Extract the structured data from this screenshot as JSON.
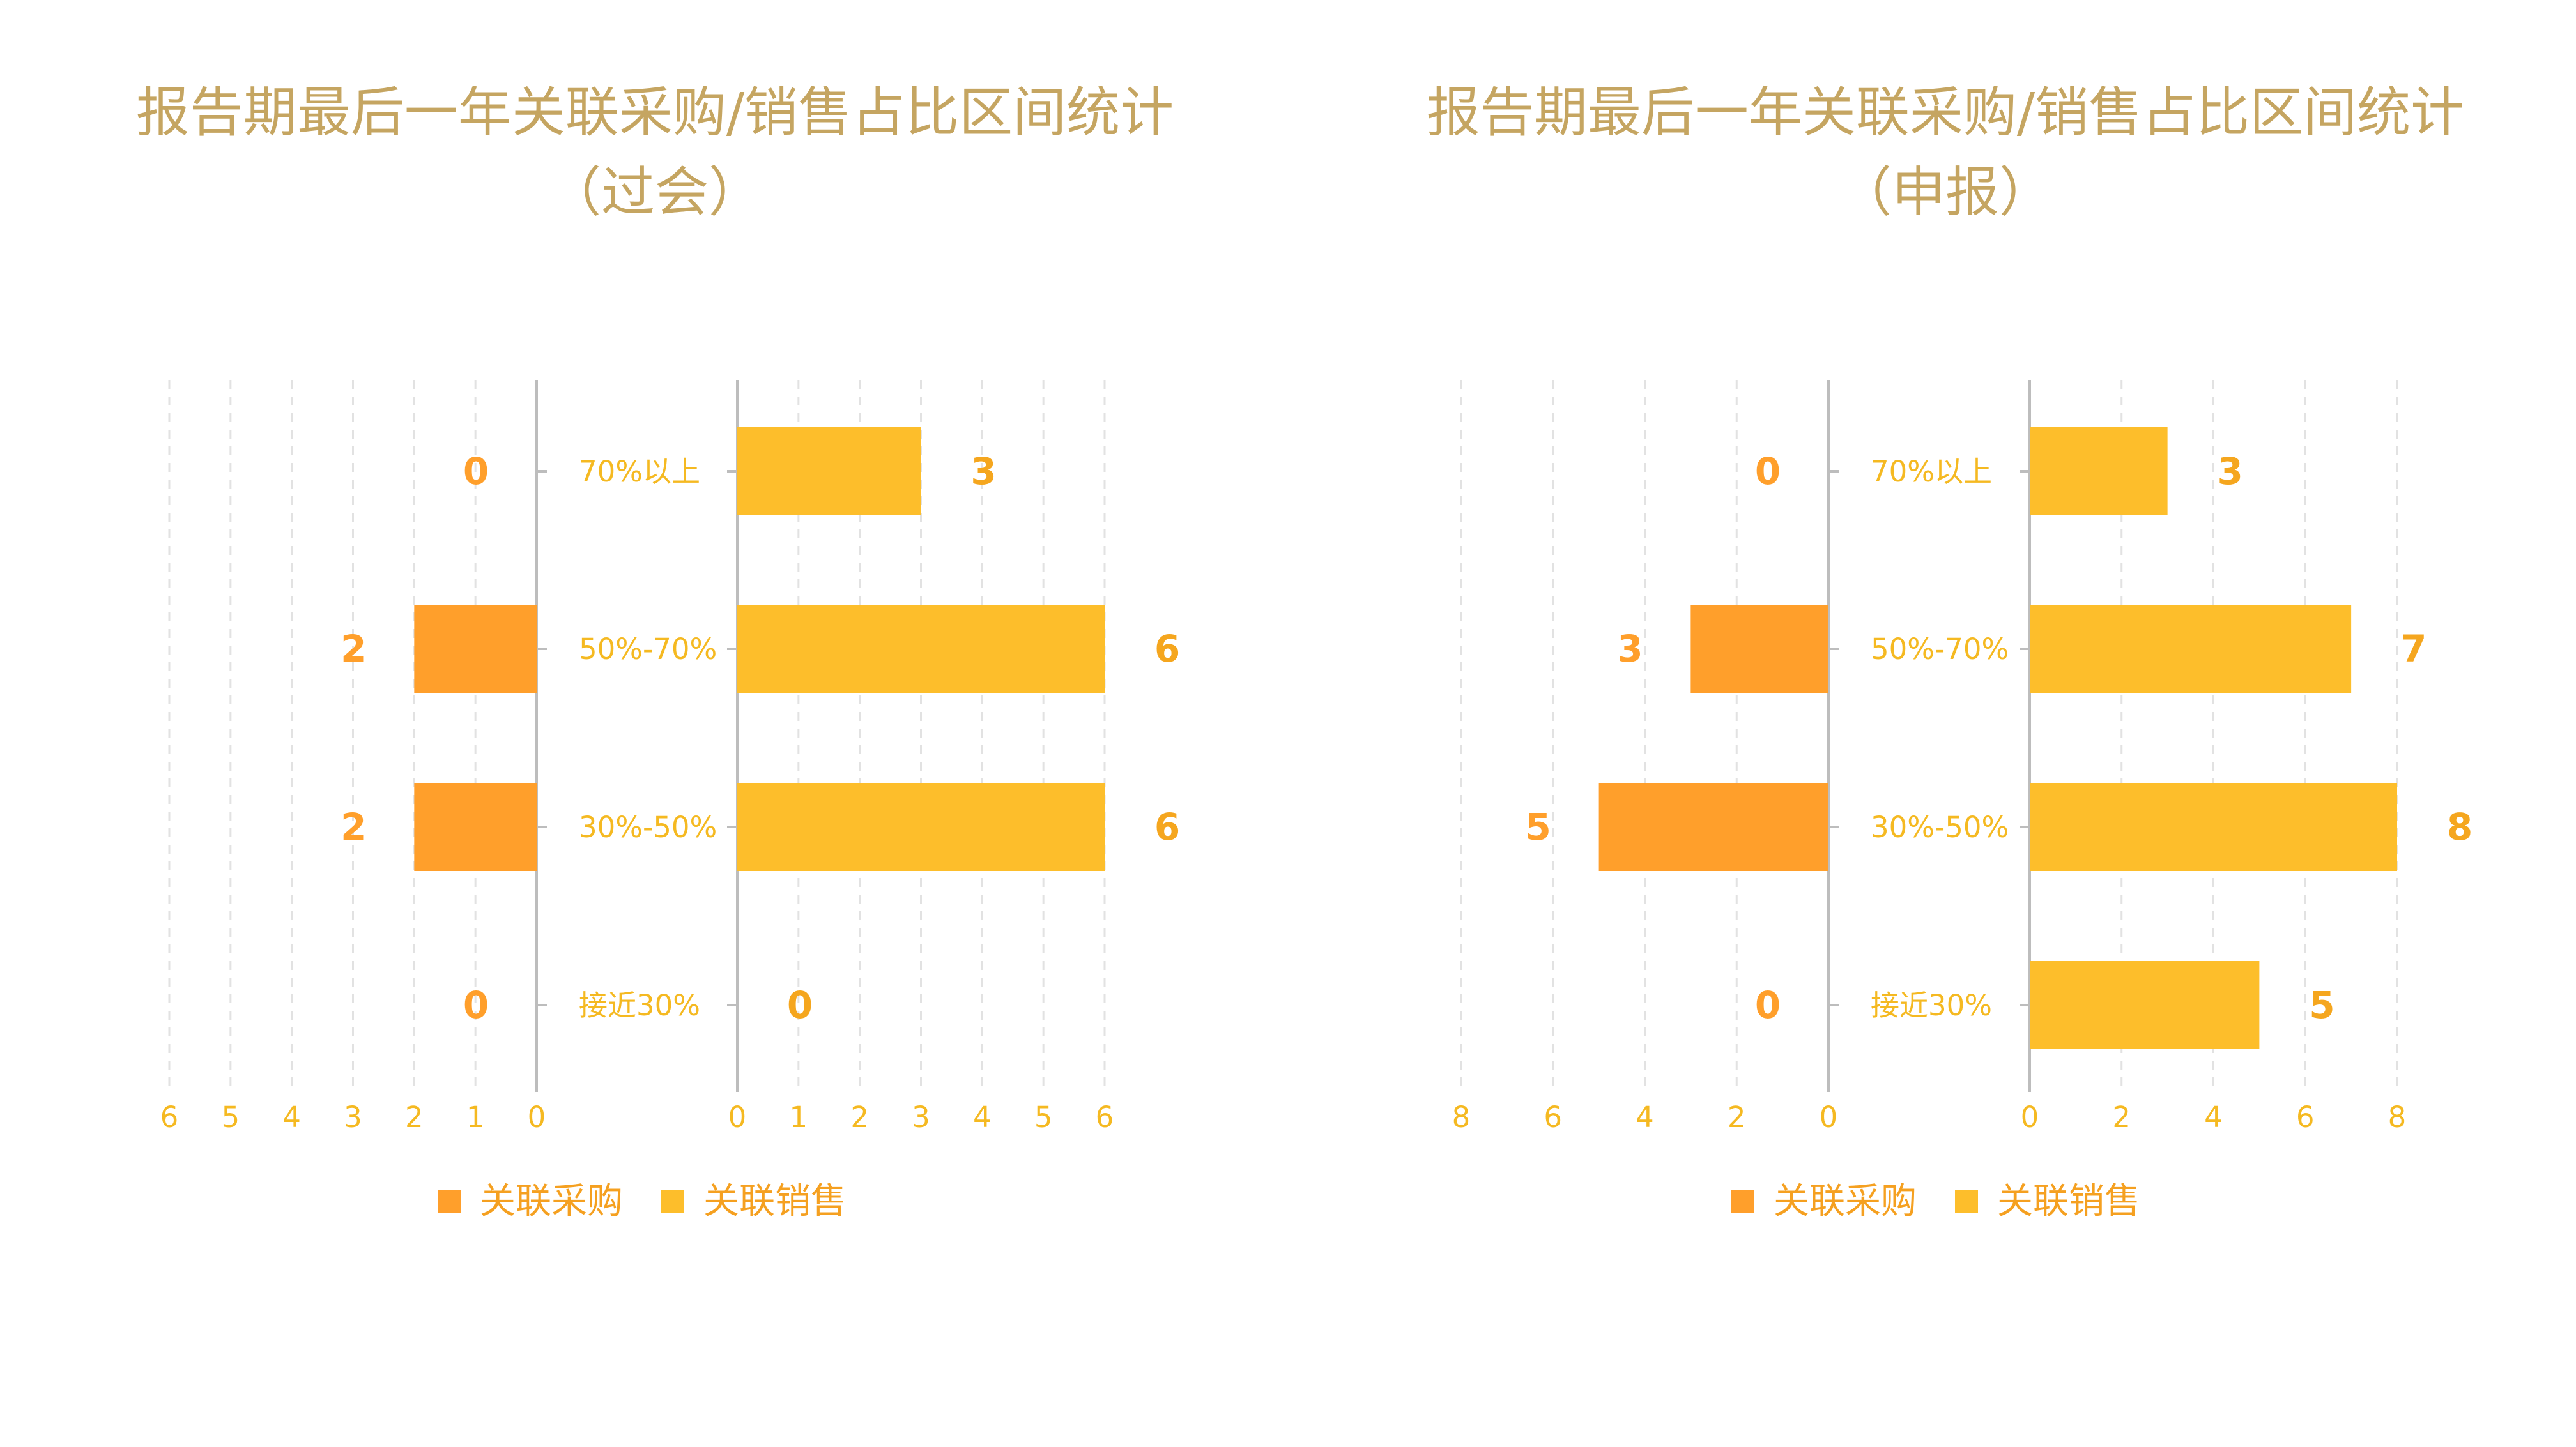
{
  "colors": {
    "purchase": "#ff9f2b",
    "sales": "#fdbe2b",
    "title": "#c5a561",
    "label": "#f5b921",
    "axis": "#bdbdbd",
    "grid": "#e2e2e2"
  },
  "chart_data": [
    {
      "type": "bar",
      "orientation": "horizontal-butterfly",
      "title_line1": "报告期最后一年关联采购/销售占比区间统计",
      "title_line2": "（过会）",
      "categories": [
        "70%以上",
        "50%-70%",
        "30%-50%",
        "接近30%"
      ],
      "series": [
        {
          "name": "关联采购",
          "values": [
            0,
            2,
            2,
            0
          ]
        },
        {
          "name": "关联销售",
          "values": [
            3,
            6,
            6,
            0
          ]
        }
      ],
      "left_ticks": [
        "6",
        "5",
        "4",
        "3",
        "2",
        "1",
        "0"
      ],
      "right_ticks": [
        "0",
        "1",
        "2",
        "3",
        "4",
        "5",
        "6"
      ],
      "left_xlim": [
        0,
        6
      ],
      "right_xlim": [
        0,
        6
      ],
      "grid": true,
      "legend_position": "bottom"
    },
    {
      "type": "bar",
      "orientation": "horizontal-butterfly",
      "title_line1": "报告期最后一年关联采购/销售占比区间统计",
      "title_line2": "（申报）",
      "categories": [
        "70%以上",
        "50%-70%",
        "30%-50%",
        "接近30%"
      ],
      "series": [
        {
          "name": "关联采购",
          "values": [
            0,
            3,
            5,
            0
          ]
        },
        {
          "name": "关联销售",
          "values": [
            3,
            7,
            8,
            5
          ]
        }
      ],
      "left_ticks": [
        "8",
        "6",
        "4",
        "2",
        "0"
      ],
      "right_ticks": [
        "0",
        "2",
        "4",
        "6",
        "8"
      ],
      "left_xlim": [
        0,
        8
      ],
      "right_xlim": [
        0,
        8
      ],
      "grid": true,
      "legend_position": "bottom"
    }
  ]
}
